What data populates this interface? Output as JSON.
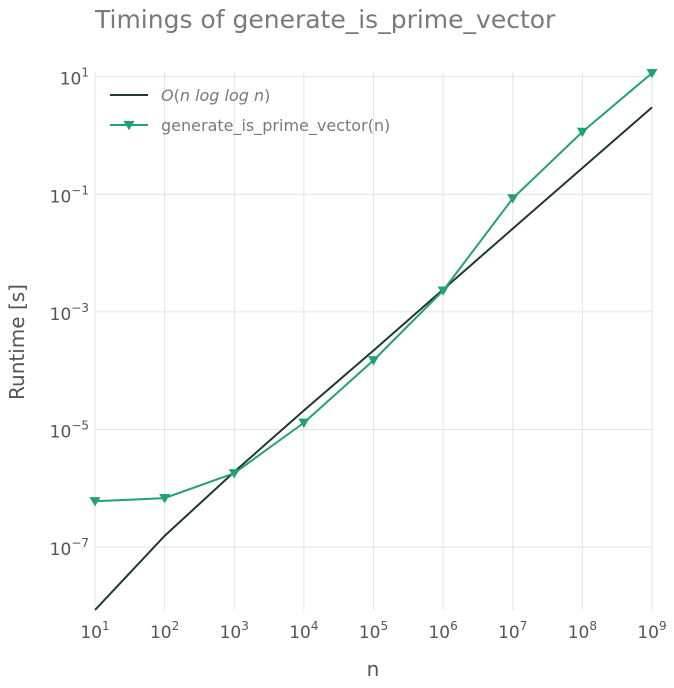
{
  "chart_data": {
    "type": "line",
    "title": "Timings of generate_is_prime_vector",
    "xlabel": "n",
    "ylabel": "Runtime [s]",
    "x_scale": "log",
    "y_scale": "log",
    "xlim": [
      10,
      1000000000
    ],
    "ylim": [
      8.5e-09,
      12
    ],
    "grid": true,
    "legend_position": "top-left",
    "x_ticks": [
      {
        "base": "10",
        "exp": "1",
        "value": 10
      },
      {
        "base": "10",
        "exp": "2",
        "value": 100
      },
      {
        "base": "10",
        "exp": "3",
        "value": 1000
      },
      {
        "base": "10",
        "exp": "4",
        "value": 10000
      },
      {
        "base": "10",
        "exp": "5",
        "value": 100000
      },
      {
        "base": "10",
        "exp": "6",
        "value": 1000000
      },
      {
        "base": "10",
        "exp": "7",
        "value": 10000000
      },
      {
        "base": "10",
        "exp": "8",
        "value": 100000000
      },
      {
        "base": "10",
        "exp": "9",
        "value": 1000000000
      }
    ],
    "y_ticks": [
      {
        "base": "10",
        "exp": "1",
        "value": 10
      },
      {
        "base": "10",
        "exp": "−1",
        "value": 0.1
      },
      {
        "base": "10",
        "exp": "−3",
        "value": 0.001
      },
      {
        "base": "10",
        "exp": "−5",
        "value": 1e-05
      },
      {
        "base": "10",
        "exp": "−7",
        "value": 1e-07
      }
    ],
    "series": [
      {
        "name": "O(n log log n)",
        "color": "#1f3a26",
        "marker": "none",
        "x": [
          10,
          100,
          1000,
          10000,
          100000,
          1000000,
          10000000,
          100000000,
          1000000000
        ],
        "y": [
          8.5e-09,
          1.55e-07,
          1.9e-06,
          2.1e-05,
          0.00022,
          0.0024,
          0.026,
          0.28,
          3.0
        ]
      },
      {
        "name": "generate_is_prime_vector(n)",
        "color": "#24a174",
        "marker": "triangle-down",
        "x": [
          10,
          100,
          1000,
          10000,
          100000,
          1000000,
          10000000,
          100000000,
          1000000000
        ],
        "y": [
          6e-07,
          6.8e-07,
          1.8e-06,
          1.3e-05,
          0.00015,
          0.0023,
          0.085,
          1.15,
          11.5
        ]
      }
    ]
  }
}
